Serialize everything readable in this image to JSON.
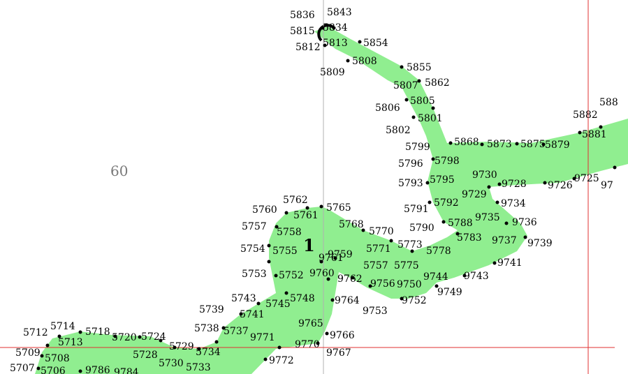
{
  "map": {
    "zone_label": "60",
    "island_label": "1",
    "colors": {
      "land_fill": "#90ee90",
      "boundary_line": "#e03030",
      "guide_line": "#b0b0b0",
      "vertex": "#000000",
      "background": "#ffffff"
    },
    "labels": [
      "5836",
      "5843",
      "5815",
      "5834",
      "5812",
      "5813",
      "5854",
      "5808",
      "5809",
      "5855",
      "5807",
      "5862",
      "5805",
      "5806",
      "5801",
      "5802",
      "5799",
      "5868",
      "5873",
      "5875",
      "5879",
      "5882",
      "5881",
      "588",
      "5798",
      "5796",
      "5795",
      "5793",
      "9730",
      "9728",
      "9726",
      "9725",
      "97",
      "9729",
      "9734",
      "5792",
      "5791",
      "9735",
      "9736",
      "5790",
      "5788",
      "5783",
      "9737",
      "9739",
      "5762",
      "5765",
      "5760",
      "5761",
      "5768",
      "5770",
      "5757",
      "5758",
      "5754",
      "5755",
      "5771",
      "5773",
      "5778",
      "9761",
      "9759",
      "5757",
      "5775",
      "9741",
      "5753",
      "5752",
      "9760",
      "9762",
      "9756",
      "9750",
      "9744",
      "9743",
      "9749",
      "5743",
      "5745",
      "5748",
      "9764",
      "5741",
      "9752",
      "9753",
      "5739",
      "9765",
      "5738",
      "5737",
      "9771",
      "9766",
      "9770",
      "9767",
      "5712",
      "5714",
      "5718",
      "5720",
      "5724",
      "5713",
      "5729",
      "5734",
      "5728",
      "5709",
      "5708",
      "9772",
      "5730",
      "5733",
      "5707",
      "5706",
      "9786",
      "9784"
    ]
  }
}
